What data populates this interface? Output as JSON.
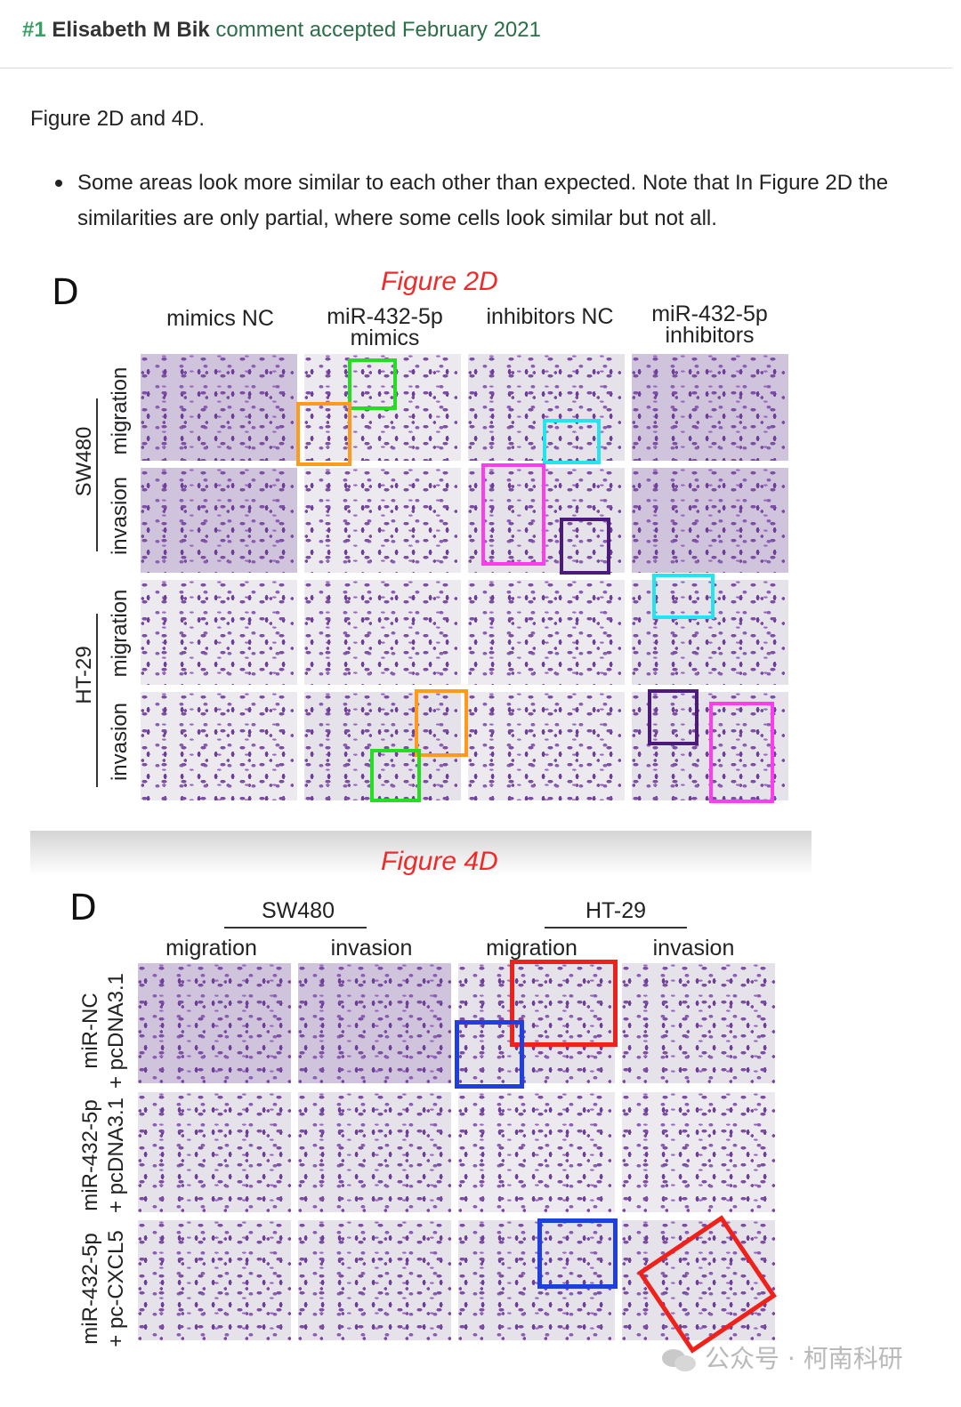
{
  "comment": {
    "number": "#1",
    "author": "Elisabeth M Bik",
    "status": "comment accepted February 2021"
  },
  "body": {
    "intro": "Figure 2D and 4D.",
    "bullets": [
      "Some areas look more similar to each other than expected. Note that In Figure 2D the similarities are only partial, where some cells look similar but not all."
    ]
  },
  "figure2d": {
    "title": "Figure 2D",
    "panel_letter": "D",
    "columns": [
      "mimics NC",
      "miR-432-5p\nmimics",
      "inhibitors NC",
      "miR-432-5p\ninhibitors"
    ],
    "col1_line1": "miR-432-5p",
    "col1_line2": "mimics",
    "col3_line1": "miR-432-5p",
    "col3_line2": "inhibitors",
    "groups": [
      "SW480",
      "HT-29"
    ],
    "rows": [
      "migration",
      "invasion",
      "migration",
      "invasion"
    ],
    "highlight_colors": {
      "green": "#22e020",
      "orange": "#ff9a1a",
      "cyan": "#22e5ef",
      "magenta": "#ff3cf0",
      "purple": "#4b1a7a"
    }
  },
  "figure4d": {
    "title": "Figure 4D",
    "panel_letter": "D",
    "groups": [
      "SW480",
      "HT-29"
    ],
    "columns": [
      "migration",
      "invasion",
      "migration",
      "invasion"
    ],
    "rows": [
      {
        "line1": "miR-NC",
        "line2": "+ pcDNA3.1"
      },
      {
        "line1": "miR-432-5p",
        "line2": "+ pcDNA3.1"
      },
      {
        "line1": "miR-432-5p",
        "line2": "+ pc-CXCL5"
      }
    ],
    "highlight_colors": {
      "red": "#f0201a",
      "blue": "#1f3fe0"
    }
  },
  "watermark": {
    "text": "公众号 · 柯南科研"
  }
}
